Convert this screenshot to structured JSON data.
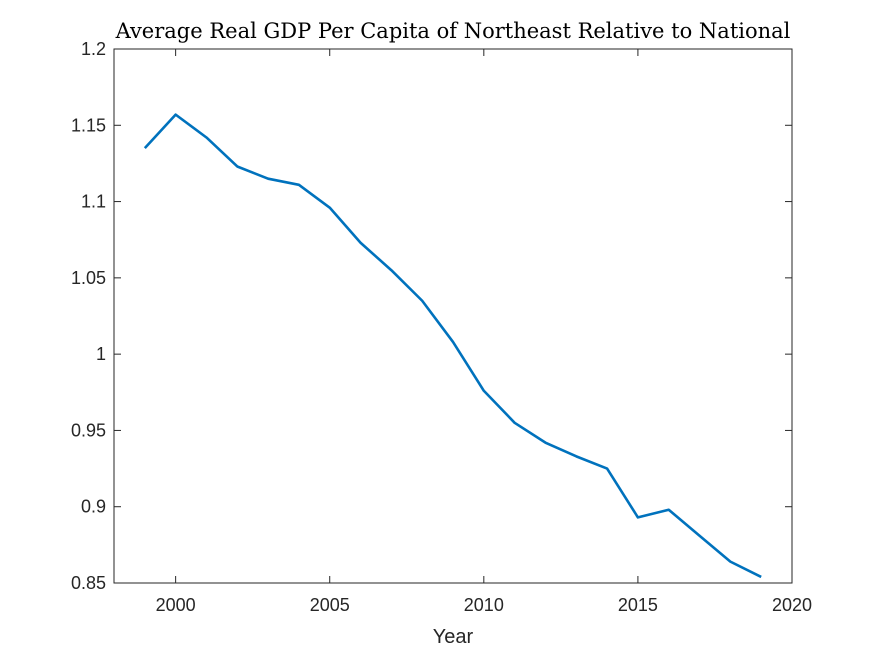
{
  "chart_data": {
    "type": "line",
    "title": "Average Real GDP Per Capita of Northeast Relative to National",
    "xlabel": "Year",
    "ylabel": "",
    "xlim": [
      1998,
      2020
    ],
    "ylim": [
      0.85,
      1.2
    ],
    "xticks": [
      "2000",
      "2005",
      "2010",
      "2015",
      "2020"
    ],
    "yticks": [
      "0.85",
      "0.9",
      "0.95",
      "1",
      "1.05",
      "1.1",
      "1.15",
      "1.2"
    ],
    "grid": false,
    "line_color": "#0072BD",
    "series": [
      {
        "x": [
          1999,
          2000,
          2001,
          2002,
          2003,
          2004,
          2005,
          2006,
          2007,
          2008,
          2009,
          2010,
          2011,
          2012,
          2013,
          2014,
          2015,
          2016,
          2017,
          2018,
          2019
        ],
        "values": [
          1.135,
          1.157,
          1.142,
          1.123,
          1.115,
          1.111,
          1.096,
          1.073,
          1.055,
          1.035,
          1.008,
          0.976,
          0.955,
          0.942,
          0.933,
          0.925,
          0.893,
          0.898,
          0.881,
          0.864,
          0.854
        ]
      }
    ]
  }
}
